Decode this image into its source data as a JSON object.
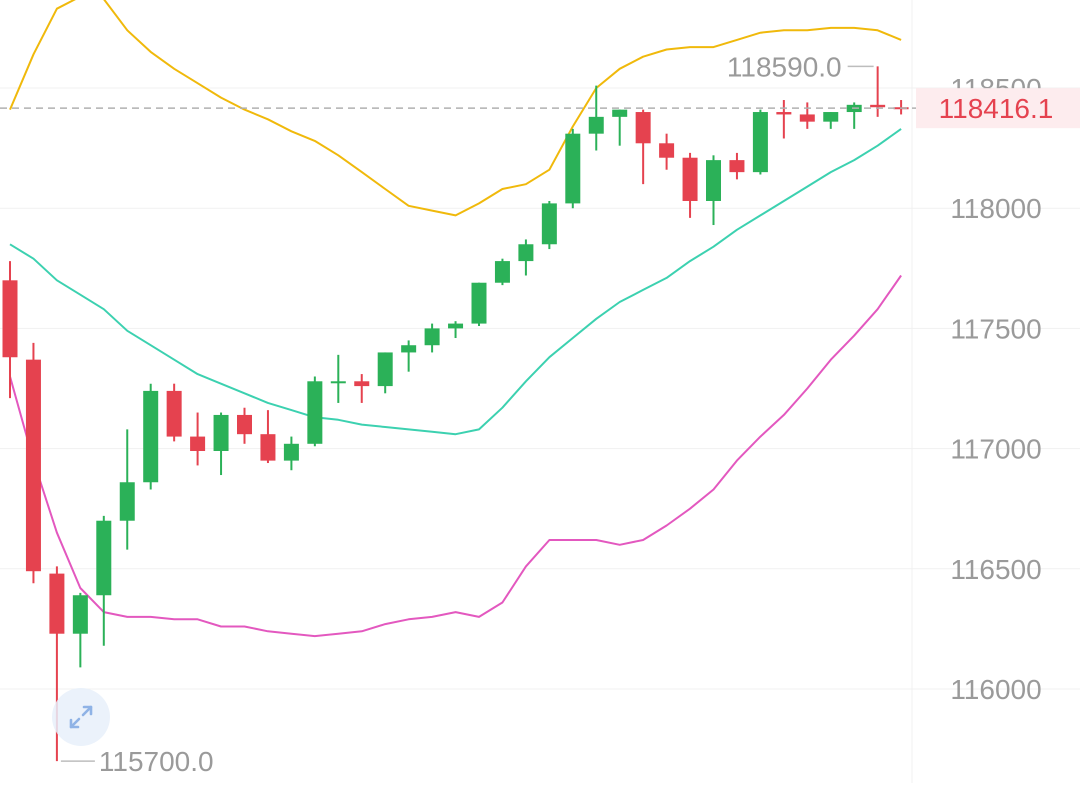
{
  "chart_data": {
    "type": "candlestick",
    "title": "",
    "indicator": "bollinger-bands",
    "ylim": [
      115700,
      118800
    ],
    "y_ticks": [
      "118500",
      "118000",
      "117500",
      "117000",
      "116500",
      "116000"
    ],
    "y_tick_values": [
      118500,
      118000,
      117500,
      117000,
      116500,
      116000
    ],
    "current_price": "118416.1",
    "current_price_value": 118416.1,
    "high_label": "118590.0",
    "high_value": 118590,
    "low_label": "115700.0",
    "low_value": 115700,
    "grid": true,
    "colors": {
      "up": "#2bb158",
      "down": "#e5424f",
      "upper_band": "#f0b90b",
      "middle_band": "#3cd1b0",
      "lower_band": "#e358bf",
      "price_line": "#b0b0b0",
      "price_label_bg": "#fdecee",
      "price_label_text": "#e5424f",
      "axis_text": "#9a9a9a",
      "grid": "#f1f1f1"
    },
    "candles": [
      {
        "o": 117700,
        "h": 117780,
        "l": 117210,
        "c": 117380
      },
      {
        "o": 117370,
        "h": 117440,
        "l": 116440,
        "c": 116490
      },
      {
        "o": 116480,
        "h": 116510,
        "l": 115700,
        "c": 116230
      },
      {
        "o": 116230,
        "h": 116400,
        "l": 116090,
        "c": 116390
      },
      {
        "o": 116390,
        "h": 116720,
        "l": 116180,
        "c": 116700
      },
      {
        "o": 116700,
        "h": 117080,
        "l": 116580,
        "c": 116860
      },
      {
        "o": 116860,
        "h": 117270,
        "l": 116830,
        "c": 117240
      },
      {
        "o": 117240,
        "h": 117270,
        "l": 117030,
        "c": 117050
      },
      {
        "o": 117050,
        "h": 117150,
        "l": 116930,
        "c": 116990
      },
      {
        "o": 116990,
        "h": 117150,
        "l": 116890,
        "c": 117140
      },
      {
        "o": 117140,
        "h": 117170,
        "l": 117020,
        "c": 117060
      },
      {
        "o": 117060,
        "h": 117160,
        "l": 116940,
        "c": 116950
      },
      {
        "o": 116950,
        "h": 117050,
        "l": 116910,
        "c": 117020
      },
      {
        "o": 117020,
        "h": 117300,
        "l": 117010,
        "c": 117280
      },
      {
        "o": 117280,
        "h": 117390,
        "l": 117190,
        "c": 117280
      },
      {
        "o": 117280,
        "h": 117310,
        "l": 117190,
        "c": 117260
      },
      {
        "o": 117260,
        "h": 117400,
        "l": 117230,
        "c": 117400
      },
      {
        "o": 117400,
        "h": 117450,
        "l": 117320,
        "c": 117430
      },
      {
        "o": 117430,
        "h": 117520,
        "l": 117400,
        "c": 117500
      },
      {
        "o": 117500,
        "h": 117530,
        "l": 117460,
        "c": 117520
      },
      {
        "o": 117520,
        "h": 117690,
        "l": 117510,
        "c": 117690
      },
      {
        "o": 117690,
        "h": 117790,
        "l": 117680,
        "c": 117780
      },
      {
        "o": 117780,
        "h": 117870,
        "l": 117720,
        "c": 117850
      },
      {
        "o": 117850,
        "h": 118030,
        "l": 117830,
        "c": 118020
      },
      {
        "o": 118020,
        "h": 118330,
        "l": 118000,
        "c": 118310
      },
      {
        "o": 118310,
        "h": 118510,
        "l": 118240,
        "c": 118380
      },
      {
        "o": 118380,
        "h": 118410,
        "l": 118260,
        "c": 118410
      },
      {
        "o": 118400,
        "h": 118410,
        "l": 118100,
        "c": 118270
      },
      {
        "o": 118270,
        "h": 118310,
        "l": 118160,
        "c": 118210
      },
      {
        "o": 118210,
        "h": 118230,
        "l": 117960,
        "c": 118030
      },
      {
        "o": 118030,
        "h": 118220,
        "l": 117930,
        "c": 118200
      },
      {
        "o": 118200,
        "h": 118230,
        "l": 118120,
        "c": 118150
      },
      {
        "o": 118150,
        "h": 118410,
        "l": 118140,
        "c": 118400
      },
      {
        "o": 118400,
        "h": 118450,
        "l": 118290,
        "c": 118390
      },
      {
        "o": 118390,
        "h": 118440,
        "l": 118330,
        "c": 118360
      },
      {
        "o": 118360,
        "h": 118400,
        "l": 118330,
        "c": 118400
      },
      {
        "o": 118400,
        "h": 118440,
        "l": 118330,
        "c": 118430
      },
      {
        "o": 118430,
        "h": 118590,
        "l": 118380,
        "c": 118420
      },
      {
        "o": 118420,
        "h": 118450,
        "l": 118390,
        "c": 118416
      }
    ],
    "upper_band": [
      118410,
      118640,
      118830,
      118880,
      118870,
      118740,
      118650,
      118580,
      118520,
      118460,
      118410,
      118370,
      118320,
      118280,
      118220,
      118150,
      118080,
      118010,
      117990,
      117970,
      118020,
      118080,
      118100,
      118160,
      118340,
      118500,
      118580,
      118630,
      118660,
      118670,
      118670,
      118700,
      118730,
      118740,
      118740,
      118750,
      118750,
      118740,
      118700
    ],
    "middle_band": [
      117850,
      117790,
      117700,
      117640,
      117580,
      117490,
      117430,
      117370,
      117310,
      117270,
      117230,
      117190,
      117160,
      117130,
      117120,
      117100,
      117090,
      117080,
      117070,
      117060,
      117080,
      117170,
      117280,
      117380,
      117460,
      117540,
      117610,
      117660,
      117710,
      117780,
      117840,
      117910,
      117970,
      118030,
      118090,
      118150,
      118200,
      118260,
      118330
    ],
    "lower_band": [
      117300,
      116950,
      116650,
      116420,
      116320,
      116300,
      116300,
      116290,
      116290,
      116260,
      116260,
      116240,
      116230,
      116220,
      116230,
      116240,
      116270,
      116290,
      116300,
      116320,
      116300,
      116360,
      116510,
      116620,
      116620,
      116620,
      116600,
      116620,
      116680,
      116750,
      116830,
      116950,
      117050,
      117140,
      117250,
      117370,
      117470,
      117580,
      117720
    ]
  }
}
